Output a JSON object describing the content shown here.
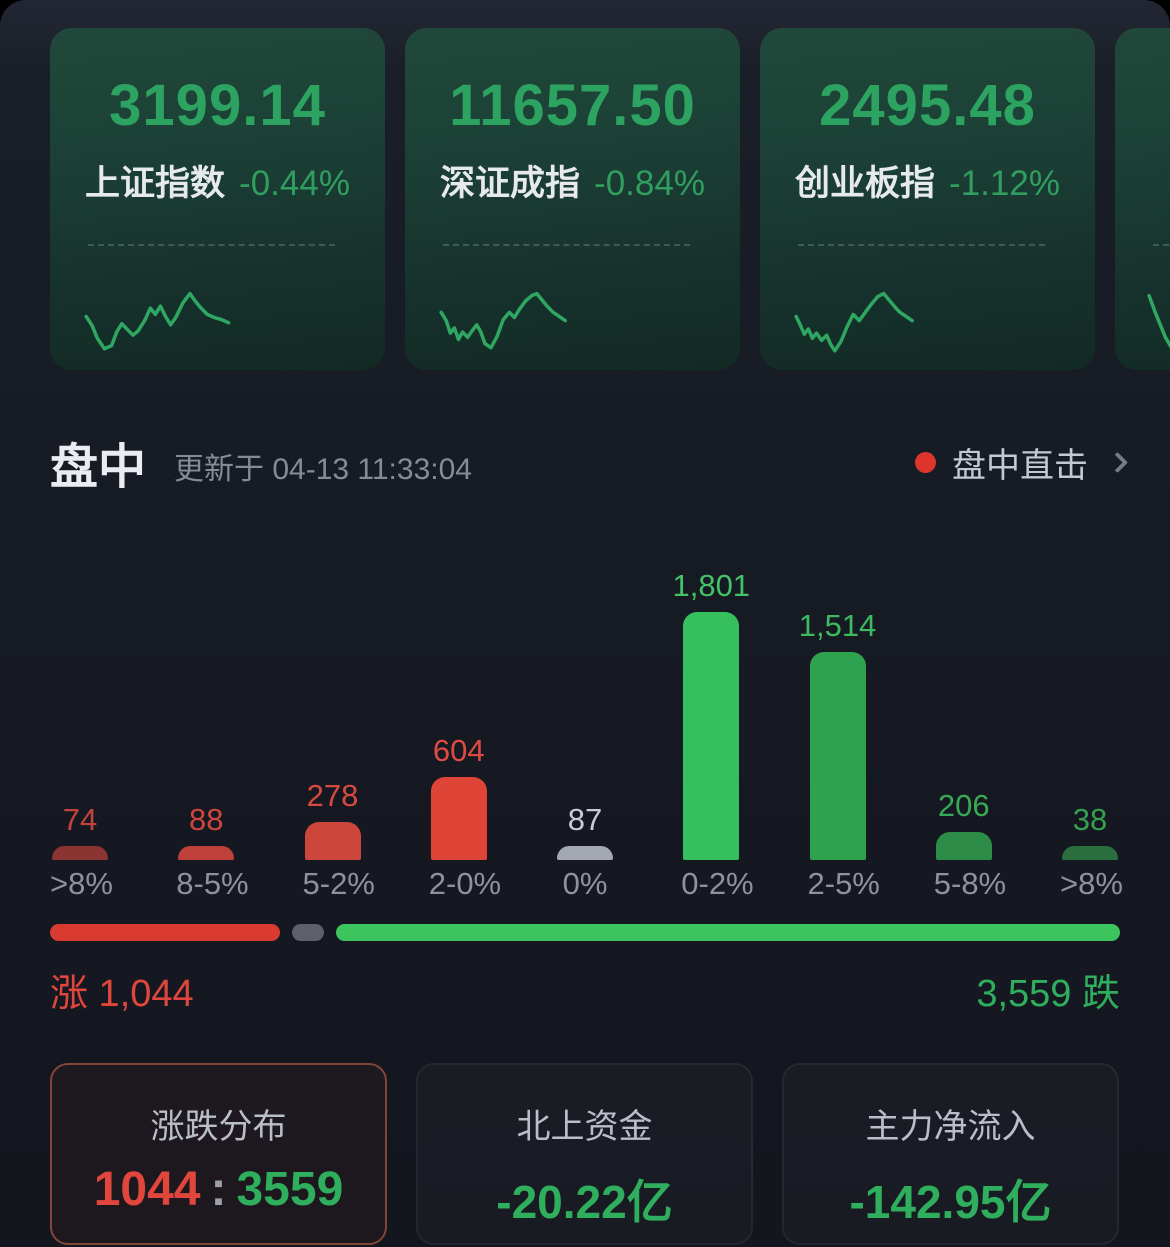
{
  "colors": {
    "up_red": "#e0463c",
    "down_green": "#2fae5e",
    "index_green": "#2da361",
    "live_dot": "#dd352c",
    "selected_card_border": "#82453a",
    "sparkline": "#2fa763"
  },
  "indices": [
    {
      "value": "3199.14",
      "name": "上证指数",
      "change": "-0.44%",
      "sparkline": [
        [
          8,
          62
        ],
        [
          14,
          71
        ],
        [
          19,
          83
        ],
        [
          26,
          93
        ],
        [
          33,
          90
        ],
        [
          38,
          77
        ],
        [
          43,
          69
        ],
        [
          48,
          74
        ],
        [
          54,
          80
        ],
        [
          59,
          76
        ],
        [
          66,
          65
        ],
        [
          71,
          54
        ],
        [
          76,
          60
        ],
        [
          81,
          52
        ],
        [
          86,
          62
        ],
        [
          91,
          70
        ],
        [
          96,
          63
        ],
        [
          103,
          49
        ],
        [
          110,
          40
        ],
        [
          115,
          47
        ],
        [
          120,
          53
        ],
        [
          127,
          60
        ],
        [
          134,
          63
        ],
        [
          141,
          65
        ],
        [
          148,
          68
        ]
      ]
    },
    {
      "value": "11657.50",
      "name": "深证成指",
      "change": "-0.84%",
      "sparkline": [
        [
          8,
          58
        ],
        [
          13,
          66
        ],
        [
          17,
          78
        ],
        [
          21,
          73
        ],
        [
          25,
          84
        ],
        [
          29,
          77
        ],
        [
          34,
          82
        ],
        [
          39,
          75
        ],
        [
          43,
          70
        ],
        [
          47,
          77
        ],
        [
          51,
          88
        ],
        [
          57,
          92
        ],
        [
          63,
          81
        ],
        [
          69,
          65
        ],
        [
          75,
          58
        ],
        [
          80,
          63
        ],
        [
          85,
          55
        ],
        [
          91,
          47
        ],
        [
          97,
          42
        ],
        [
          102,
          40
        ],
        [
          107,
          46
        ],
        [
          112,
          52
        ],
        [
          118,
          58
        ],
        [
          124,
          62
        ],
        [
          130,
          66
        ]
      ]
    },
    {
      "value": "2495.48",
      "name": "创业板指",
      "change": "-1.12%",
      "sparkline": [
        [
          8,
          62
        ],
        [
          12,
          70
        ],
        [
          16,
          79
        ],
        [
          20,
          74
        ],
        [
          24,
          83
        ],
        [
          28,
          78
        ],
        [
          33,
          85
        ],
        [
          38,
          80
        ],
        [
          42,
          89
        ],
        [
          46,
          95
        ],
        [
          52,
          86
        ],
        [
          58,
          72
        ],
        [
          64,
          60
        ],
        [
          70,
          66
        ],
        [
          76,
          58
        ],
        [
          82,
          50
        ],
        [
          88,
          43
        ],
        [
          94,
          40
        ],
        [
          100,
          47
        ],
        [
          106,
          54
        ],
        [
          110,
          58
        ],
        [
          116,
          62
        ],
        [
          122,
          66
        ]
      ]
    },
    {
      "value": "",
      "name": "",
      "change": "",
      "sparkline": [
        [
          6,
          42
        ],
        [
          12,
          58
        ],
        [
          17,
          70
        ],
        [
          22,
          82
        ],
        [
          28,
          92
        ]
      ]
    }
  ],
  "section": {
    "title": "盘中",
    "updated": "更新于 04-13 11:33:04",
    "live": "盘中直击"
  },
  "chart_data": {
    "type": "bar",
    "categories": [
      ">8%",
      "8-5%",
      "5-2%",
      "2-0%",
      "0%",
      "0-2%",
      "2-5%",
      "5-8%",
      ">8%"
    ],
    "values": [
      74,
      88,
      278,
      604,
      87,
      1801,
      1514,
      206,
      38
    ],
    "value_labels": [
      "74",
      "88",
      "278",
      "604",
      "87",
      "1,801",
      "1,514",
      "206",
      "38"
    ],
    "bar_colors": [
      "#8a3531",
      "#bf4038",
      "#cc463c",
      "#de4537",
      "#a3a8b1",
      "#36bf5d",
      "#2fa250",
      "#2c8c47",
      "#2b6f3f"
    ],
    "label_colors": [
      "#c4423c",
      "#cd463f",
      "#d84a41",
      "#df4b42",
      "#c8ccd4",
      "#43c368",
      "#3dba60",
      "#38aa56",
      "#35a050"
    ],
    "ylim": [
      0,
      1801
    ],
    "grid": false,
    "legend": "none"
  },
  "ratio_bar": {
    "segments": [
      {
        "name": "up",
        "value": 1044,
        "color": "#d93b31"
      },
      {
        "name": "flat",
        "value": 87,
        "color": "#5d6069"
      },
      {
        "name": "down",
        "value": 3559,
        "color": "#3cc45e"
      }
    ]
  },
  "summary": {
    "up": "涨 1,044",
    "down": "3,559 跌"
  },
  "bottom_cards": [
    {
      "title": "涨跌分布",
      "up": "1044",
      "sep": ":",
      "down": "3559"
    },
    {
      "title": "北上资金",
      "value": "-20.22亿"
    },
    {
      "title": "主力净流入",
      "value": "-142.95亿"
    }
  ]
}
